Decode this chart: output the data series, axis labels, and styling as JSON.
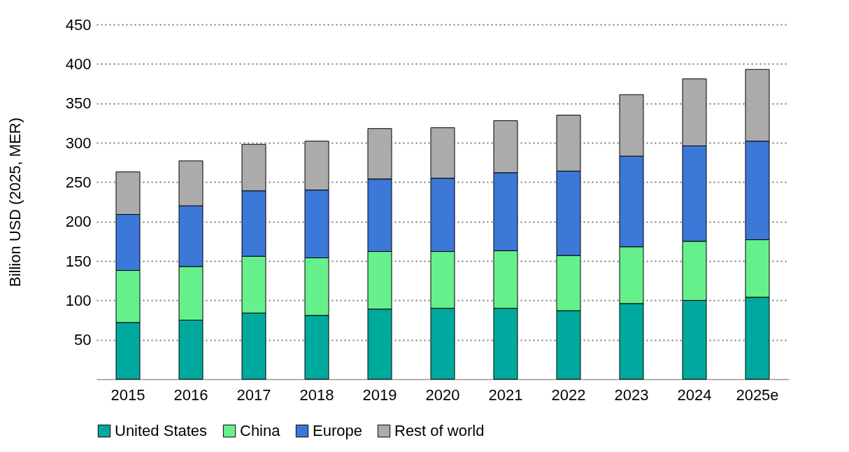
{
  "chart_data": {
    "type": "bar",
    "stacked": true,
    "ylabel": "Billion USD (2025, MER)",
    "categories": [
      "2015",
      "2016",
      "2017",
      "2018",
      "2019",
      "2020",
      "2021",
      "2022",
      "2023",
      "2024",
      "2025e"
    ],
    "series": [
      {
        "name": "United States",
        "color": "#00a99d",
        "values": [
          72,
          75,
          84,
          81,
          89,
          90,
          90,
          87,
          96,
          100,
          104
        ]
      },
      {
        "name": "China",
        "color": "#66f08c",
        "values": [
          66,
          68,
          72,
          73,
          73,
          72,
          73,
          70,
          72,
          75,
          73
        ]
      },
      {
        "name": "Europe",
        "color": "#3c78d8",
        "values": [
          71,
          77,
          83,
          86,
          92,
          93,
          99,
          107,
          115,
          121,
          125
        ]
      },
      {
        "name": "Rest of world",
        "color": "#ababab",
        "values": [
          54,
          57,
          59,
          62,
          64,
          64,
          66,
          71,
          78,
          85,
          91
        ]
      }
    ],
    "ylim": [
      0,
      450
    ],
    "yticks": [
      50,
      100,
      150,
      200,
      250,
      300,
      350,
      400,
      450
    ],
    "grid": "y",
    "legend": "bottom"
  }
}
